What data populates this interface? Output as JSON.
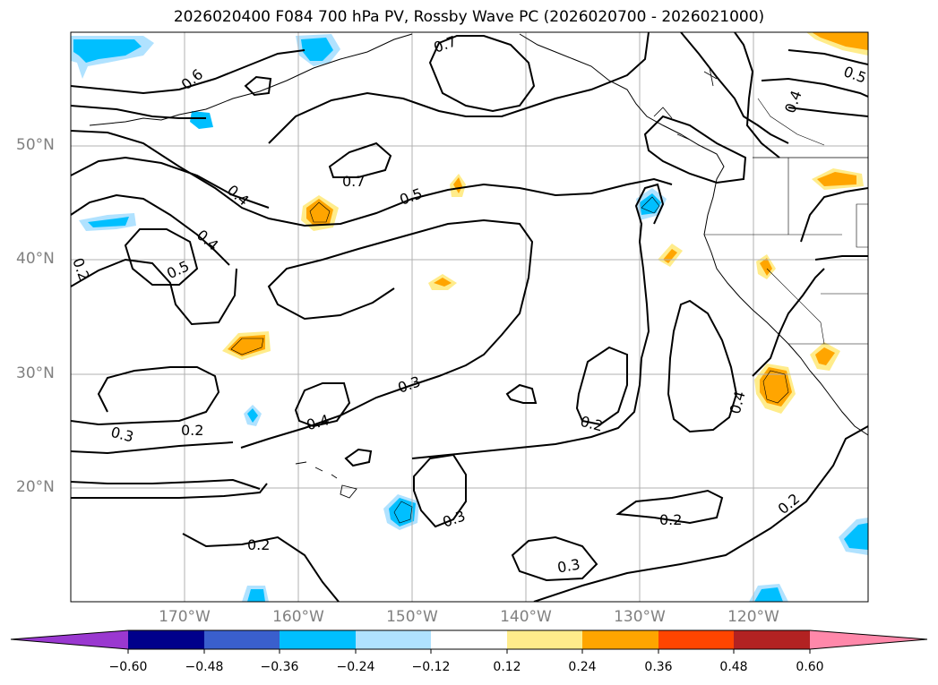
{
  "title": "2026020400 F084 700 hPa PV, Rossby Wave PC (2026020700 - 2026021000)",
  "map": {
    "projection": "PlateCarree",
    "lon_range": [
      -180,
      -110
    ],
    "lat_range": [
      10,
      60
    ],
    "grid": true,
    "grid_color": "#b0b0b0",
    "coastline_color": "#000000",
    "contour_color": "#000000"
  },
  "latitude_labels": [
    "50°N",
    "40°N",
    "30°N",
    "20°N"
  ],
  "longitude_labels": [
    "170°W",
    "160°W",
    "150°W",
    "140°W",
    "130°W",
    "120°W"
  ],
  "contour_labels": [
    "0.6",
    "0.7",
    "0.5",
    "0.4",
    "0.7",
    "0.5",
    "0.4",
    "0.4",
    "0.5",
    "0.2",
    "0.3",
    "0.4",
    "0.3",
    "0.2",
    "0.2",
    "0.4",
    "0.3",
    "0.2",
    "0.2",
    "0.3",
    "0.2"
  ],
  "colorbar": {
    "ticks": [
      "−0.60",
      "−0.48",
      "−0.36",
      "−0.24",
      "−0.12",
      "0.12",
      "0.24",
      "0.36",
      "0.48",
      "0.60"
    ],
    "colors": [
      "#9a38d0",
      "#00008b",
      "#3a5fcd",
      "#00bfff",
      "#b0e2ff",
      "#ffffff",
      "#ffec8b",
      "#ffa500",
      "#ff4500",
      "#b22222",
      "#ff88aa"
    ]
  },
  "shading": {
    "negative_colors": [
      "#b0e2ff",
      "#00bfff"
    ],
    "positive_colors": [
      "#ffec8b",
      "#ffa500"
    ]
  }
}
